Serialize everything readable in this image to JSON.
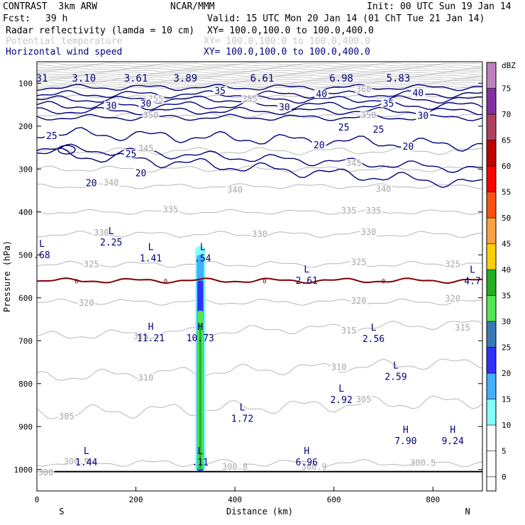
{
  "header": {
    "model": "CONTRAST  3km ARW",
    "org": "NCAR/MMM",
    "init": "Init: 00 UTC Sun 19 Jan 14",
    "fcst_label": "Fcst:",
    "fcst_value": "39 h",
    "valid": "Valid: 15 UTC Mon 20 Jan 14 (01 ChT Tue 21 Jan 14)",
    "fields": [
      {
        "name": "Radar reflectivity (lamda = 10 cm)",
        "xy": "XY= 100.0,100.0 to 100.0,400.0",
        "color": "#000000"
      },
      {
        "name": "Potential temperature",
        "xy": "XY= 100.0,100.0 to 100.0,400.0",
        "color": "#c8c8c8"
      },
      {
        "name": "Horizontal wind speed",
        "xy": "XY= 100.0,100.0 to 100.0,400.0",
        "color": "#000080"
      }
    ]
  },
  "chart_data": {
    "type": "contour-cross-section",
    "xlabel": "Distance (km)",
    "ylabel": "Pressure (hPa)",
    "xlim": [
      0,
      900
    ],
    "ylim": [
      1050,
      50
    ],
    "x_ticks": [
      0,
      200,
      400,
      600,
      800
    ],
    "y_ticks": [
      100,
      200,
      300,
      400,
      500,
      600,
      700,
      800,
      900,
      1000
    ],
    "x_end_labels": {
      "left": "S",
      "right": "N"
    },
    "colorbar": {
      "unit": "dBZ",
      "levels": [
        0,
        5,
        10,
        15,
        20,
        25,
        30,
        35,
        40,
        45,
        50,
        55,
        60,
        65,
        70,
        75
      ],
      "colors": [
        "#ffffff",
        "#ffffff",
        "#80ffff",
        "#40b0ff",
        "#3030ff",
        "#3878b8",
        "#50e850",
        "#20b020",
        "#ffd000",
        "#ffa040",
        "#ff5010",
        "#ff0000",
        "#c00000",
        "#b04060",
        "#8030a0",
        "#c080c0"
      ]
    },
    "theta_labels": [
      {
        "x": 240,
        "p": 140,
        "text": "355"
      },
      {
        "x": 430,
        "p": 140,
        "text": "355"
      },
      {
        "x": 660,
        "p": 118,
        "text": "360"
      },
      {
        "x": 230,
        "p": 178,
        "text": "350"
      },
      {
        "x": 670,
        "p": 178,
        "text": "350"
      },
      {
        "x": 220,
        "p": 255,
        "text": "345"
      },
      {
        "x": 640,
        "p": 290,
        "text": "345"
      },
      {
        "x": 150,
        "p": 335,
        "text": "340"
      },
      {
        "x": 400,
        "p": 352,
        "text": "340"
      },
      {
        "x": 700,
        "p": 350,
        "text": "340"
      },
      {
        "x": 270,
        "p": 398,
        "text": "335"
      },
      {
        "x": 630,
        "p": 400,
        "text": "335"
      },
      {
        "x": 680,
        "p": 400,
        "text": "335"
      },
      {
        "x": 130,
        "p": 452,
        "text": "330"
      },
      {
        "x": 450,
        "p": 455,
        "text": "330"
      },
      {
        "x": 670,
        "p": 450,
        "text": "330"
      },
      {
        "x": 110,
        "p": 525,
        "text": "325"
      },
      {
        "x": 650,
        "p": 520,
        "text": "325"
      },
      {
        "x": 840,
        "p": 525,
        "text": "325"
      },
      {
        "x": 100,
        "p": 615,
        "text": "320"
      },
      {
        "x": 650,
        "p": 610,
        "text": "320"
      },
      {
        "x": 840,
        "p": 605,
        "text": "320"
      },
      {
        "x": 210,
        "p": 693,
        "text": "315"
      },
      {
        "x": 630,
        "p": 680,
        "text": "315"
      },
      {
        "x": 860,
        "p": 673,
        "text": "315"
      },
      {
        "x": 220,
        "p": 790,
        "text": "310"
      },
      {
        "x": 610,
        "p": 765,
        "text": "310"
      },
      {
        "x": 60,
        "p": 880,
        "text": "305"
      },
      {
        "x": 660,
        "p": 840,
        "text": "305"
      },
      {
        "x": 80,
        "p": 985,
        "text": "300.9"
      },
      {
        "x": 400,
        "p": 997,
        "text": "300.8"
      },
      {
        "x": 560,
        "p": 997,
        "text": "300.9"
      },
      {
        "x": 780,
        "p": 988,
        "text": "300.5"
      },
      {
        "x": 18,
        "p": 1010,
        "text": "300"
      }
    ],
    "wind_labels": [
      {
        "x": 370,
        "p": 120,
        "text": "35"
      },
      {
        "x": 710,
        "p": 150,
        "text": "35"
      },
      {
        "x": 575,
        "p": 128,
        "text": "40"
      },
      {
        "x": 770,
        "p": 125,
        "text": "40"
      },
      {
        "x": 150,
        "p": 155,
        "text": "30"
      },
      {
        "x": 220,
        "p": 150,
        "text": "30"
      },
      {
        "x": 500,
        "p": 158,
        "text": "30"
      },
      {
        "x": 780,
        "p": 178,
        "text": "30"
      },
      {
        "x": 620,
        "p": 205,
        "text": "25"
      },
      {
        "x": 690,
        "p": 210,
        "text": "25"
      },
      {
        "x": 30,
        "p": 225,
        "text": "25"
      },
      {
        "x": 190,
        "p": 267,
        "text": "25"
      },
      {
        "x": 570,
        "p": 247,
        "text": "20"
      },
      {
        "x": 750,
        "p": 250,
        "text": "20"
      },
      {
        "x": 210,
        "p": 312,
        "text": "20"
      },
      {
        "x": 110,
        "p": 335,
        "text": "20"
      }
    ],
    "extrema": [
      {
        "x": 10,
        "p": 485,
        "letter": "L",
        "value": ".68"
      },
      {
        "x": 150,
        "p": 455,
        "letter": "L",
        "value": "2.25"
      },
      {
        "x": 230,
        "p": 492,
        "letter": "L",
        "value": "1.41"
      },
      {
        "x": 335,
        "p": 492,
        "letter": "L",
        "value": ".54"
      },
      {
        "x": 545,
        "p": 544,
        "letter": "L",
        "value": "2.61"
      },
      {
        "x": 880,
        "p": 545,
        "letter": "L",
        "value": "4.7"
      },
      {
        "x": 230,
        "p": 678,
        "letter": "H",
        "value": "11.21"
      },
      {
        "x": 330,
        "p": 678,
        "letter": "H",
        "value": "10.73"
      },
      {
        "x": 680,
        "p": 680,
        "letter": "L",
        "value": "2.56"
      },
      {
        "x": 725,
        "p": 768,
        "letter": "L",
        "value": "2.59"
      },
      {
        "x": 615,
        "p": 822,
        "letter": "L",
        "value": "2.92"
      },
      {
        "x": 415,
        "p": 866,
        "letter": "L",
        "value": "1.72"
      },
      {
        "x": 745,
        "p": 918,
        "letter": "H",
        "value": "7.90"
      },
      {
        "x": 840,
        "p": 918,
        "letter": "H",
        "value": "9.24"
      },
      {
        "x": 100,
        "p": 967,
        "letter": "L",
        "value": "1.44"
      },
      {
        "x": 330,
        "p": 967,
        "letter": "L",
        "value": ".11"
      },
      {
        "x": 545,
        "p": 967,
        "letter": "H",
        "value": "6.96"
      }
    ],
    "top_row_labels": [
      {
        "x": 10,
        "text": "31"
      },
      {
        "x": 95,
        "text": "3.10"
      },
      {
        "x": 200,
        "text": "3.61"
      },
      {
        "x": 300,
        "text": "3.89"
      },
      {
        "x": 455,
        "text": "6.61"
      },
      {
        "x": 615,
        "text": "6.98"
      },
      {
        "x": 730,
        "text": "5.83"
      }
    ],
    "freezing_label": "0",
    "freezing_label_x": [
      80,
      260,
      460,
      700
    ]
  }
}
